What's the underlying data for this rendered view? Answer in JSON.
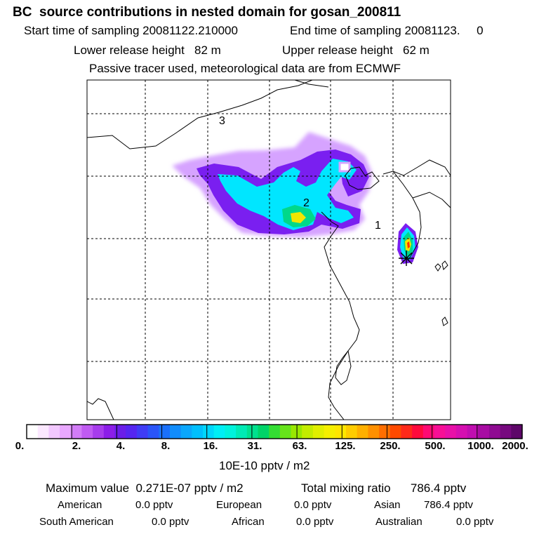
{
  "header": {
    "title": "BC  source contributions in nested domain for gosan_200811",
    "start_label": "Start time of sampling 20081122.210000",
    "end_label": "End time of sampling 20081123.     0",
    "lower_release": "Lower release height   82 m",
    "upper_release": "Upper release height   62 m",
    "tracer_note": "Passive tracer used, meteorological data are from ECMWF"
  },
  "map": {
    "station_labels": [
      "3",
      "2",
      "1"
    ],
    "receptor_marker": "asterisk-icon",
    "plume_colors": {
      "outer": "#d6a3ff",
      "mid": "#7a1ff0",
      "inner": "#00e6ff",
      "core": "#00d88a",
      "peak": "#f2e600",
      "hot": "#ff3300"
    }
  },
  "colorbar": {
    "unit": "10E-10 pptv / m2",
    "tick_labels": [
      "0.",
      "2.",
      "4.",
      "8.",
      "16.",
      "31.",
      "63.",
      "125.",
      "250.",
      "500.",
      "1000.",
      "2000."
    ],
    "colors": [
      "#ffffff",
      "#fbe8ff",
      "#f2c8ff",
      "#e9a8ff",
      "#d27cf7",
      "#c05bf2",
      "#a73cec",
      "#8c1ee8",
      "#6a1ee8",
      "#5526f0",
      "#3f3cf5",
      "#2a55f8",
      "#1a70fa",
      "#108cfb",
      "#0aa7fc",
      "#00bffd",
      "#00d6fb",
      "#00eef5",
      "#00f2dc",
      "#00eab5",
      "#00e08e",
      "#00d468",
      "#33dd33",
      "#66e31a",
      "#99e800",
      "#c3ec00",
      "#e0ef00",
      "#f5ef00",
      "#ffe600",
      "#ffcc00",
      "#ffb000",
      "#ff9000",
      "#ff6e00",
      "#ff4a00",
      "#ff2a1a",
      "#ff0a3c",
      "#ff0a73",
      "#f70f96",
      "#e810a8",
      "#d50fb0",
      "#c00eb0",
      "#a80ca3",
      "#8f0b92",
      "#77097f",
      "#5e0769"
    ]
  },
  "summary": {
    "max_value": "Maximum value  0.271E-07 pptv / m2",
    "total_mixing": "Total mixing ratio      786.4 pptv",
    "regions": [
      {
        "name": "American",
        "value": "0.0 pptv"
      },
      {
        "name": "European",
        "value": "0.0 pptv"
      },
      {
        "name": "Asian",
        "value": "786.4 pptv"
      },
      {
        "name": "South American",
        "value": "0.0 pptv"
      },
      {
        "name": "African",
        "value": "0.0 pptv"
      },
      {
        "name": "Australian",
        "value": "0.0 pptv"
      }
    ]
  }
}
